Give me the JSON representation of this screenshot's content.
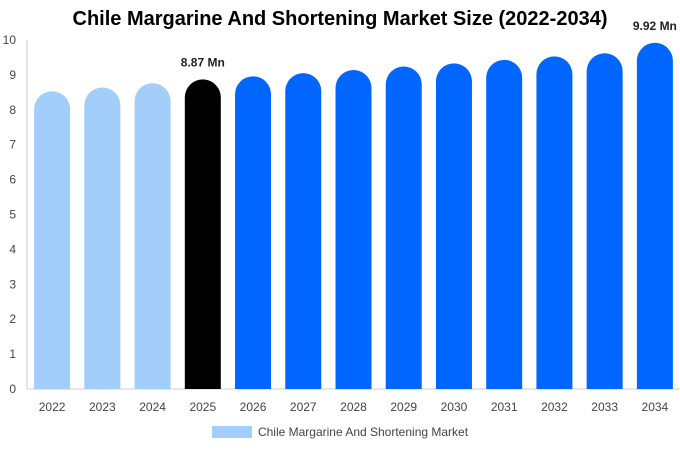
{
  "chart_data": {
    "type": "bar",
    "title": "Chile Margarine And Shortening Market Size (2022-2034)",
    "xlabel": "",
    "ylabel": "",
    "categories": [
      "2022",
      "2023",
      "2024",
      "2025",
      "2026",
      "2027",
      "2028",
      "2029",
      "2030",
      "2031",
      "2032",
      "2033",
      "2034"
    ],
    "series": [
      {
        "name": "Chile Margarine And Shortening Market",
        "values": [
          8.53,
          8.64,
          8.76,
          8.87,
          8.96,
          9.05,
          9.14,
          9.24,
          9.33,
          9.43,
          9.53,
          9.62,
          9.92
        ]
      }
    ],
    "bar_colors": [
      "#a3cdfb",
      "#a3cdfb",
      "#a3cdfb",
      "#000000",
      "#0066ff",
      "#0066ff",
      "#0066ff",
      "#0066ff",
      "#0066ff",
      "#0066ff",
      "#0066ff",
      "#0066ff",
      "#0066ff"
    ],
    "data_labels": [
      {
        "category": "2025",
        "text": "8.87 Mn"
      },
      {
        "category": "2034",
        "text": "9.92 Mn"
      }
    ],
    "ylim": [
      0,
      10
    ],
    "yticks": [
      0,
      1,
      2,
      3,
      4,
      5,
      6,
      7,
      8,
      9,
      10
    ],
    "grid": false,
    "legend_position": "bottom",
    "legend_color": "#a3cdfb",
    "axis_color": "#cccccc"
  }
}
